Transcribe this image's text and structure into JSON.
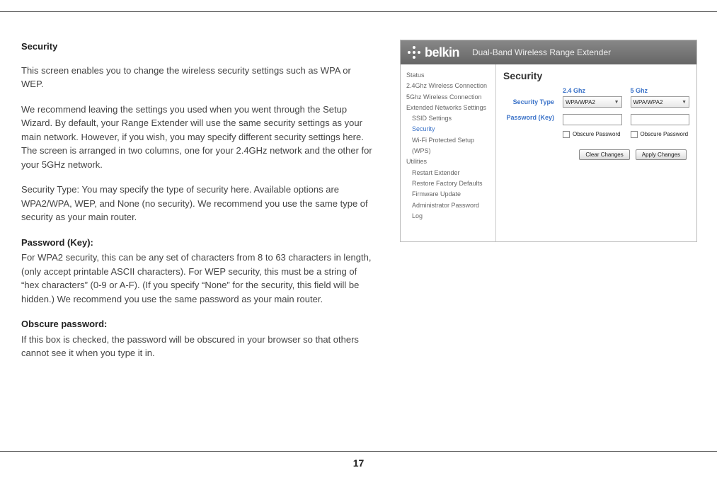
{
  "page_number": "17",
  "doc": {
    "heading": "Security",
    "p1": "This screen enables you to change the wireless security settings such as WPA or WEP.",
    "p2": "We recommend leaving the settings you used when you went through the Setup Wizard. By default, your Range Extender will use the same security settings as your main network. However, if you wish, you may specify different security settings here. The screen is arranged in two columns, one for your 2.4GHz network and the other for your 5GHz network.",
    "p3": "Security Type: You may specify the type of security here. Available options are WPA2/WPA, WEP, and None (no security). We recommend you use the same type of security as your main router.",
    "sub1": "Password (Key):",
    "p4": "For WPA2 security, this can be any set of characters from 8 to 63 characters in length, (only accept printable ASCII characters). For WEP security, this must be a string of “hex characters” (0-9 or A-F). (If you specify “None” for the security, this field will be hidden.) We recommend you use the same password as your main router.",
    "sub2": "Obscure password:",
    "p5": "If this box is checked, the password will be obscured in your browser so that others cannot see it when you type it in."
  },
  "panel": {
    "brand": "belkin",
    "title": "Dual-Band Wireless Range Extender",
    "nav": {
      "status": "Status",
      "conn24": "2.4Ghz Wireless Connection",
      "conn5": "5Ghz Wireless Connection",
      "ext": "Extended Networks Settings",
      "ssid": "SSID Settings",
      "security": "Security",
      "wps": "Wi-Fi Protected Setup (WPS)",
      "utilities": "Utilities",
      "restart": "Restart Extender",
      "restore": "Restore Factory Defaults",
      "firmware": "Firmware Update",
      "admin": "Administrator Password",
      "log": "Log"
    },
    "content": {
      "title": "Security",
      "row_security_type": "Security Type",
      "row_password": "Password (Key)",
      "band24": "2.4 Ghz",
      "band5": "5 Ghz",
      "select_value": "WPA/WPA2",
      "obscure": "Obscure Password",
      "clear": "Clear Changes",
      "apply": "Apply Changes"
    }
  }
}
